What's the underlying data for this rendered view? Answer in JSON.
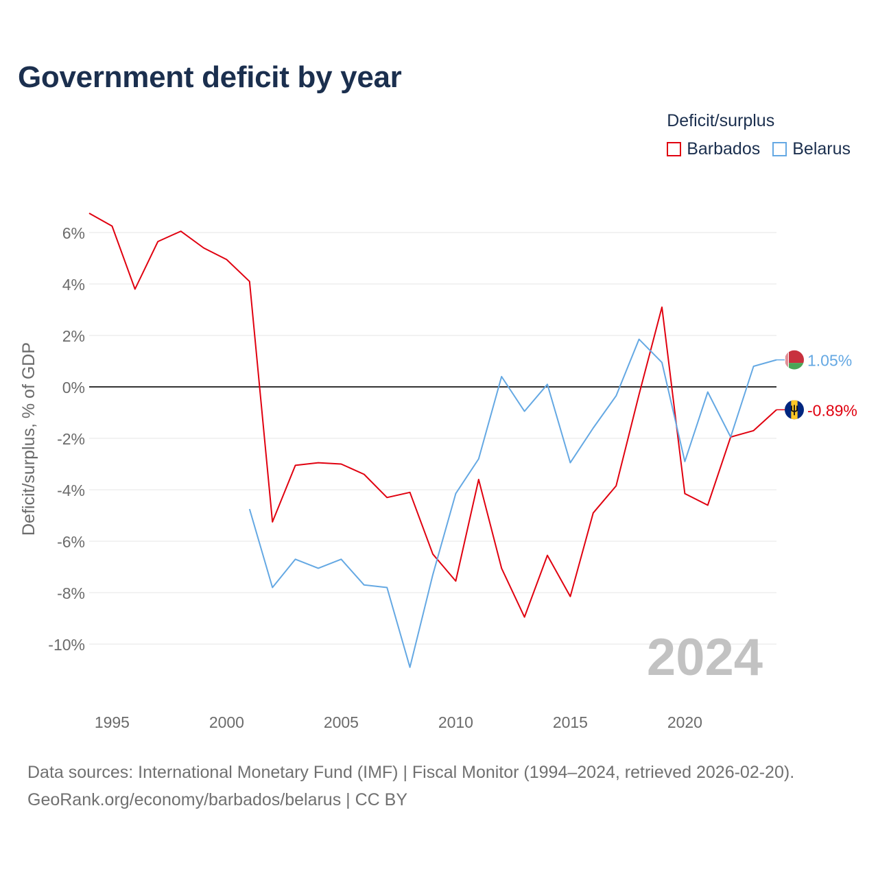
{
  "title": "Government deficit by year",
  "legend": {
    "title": "Deficit/surplus",
    "items": [
      {
        "name": "Barbados",
        "color": "#e0000f"
      },
      {
        "name": "Belarus",
        "color": "#64a8e3"
      }
    ]
  },
  "chart_data": {
    "type": "line",
    "title": "Government deficit by year",
    "xlabel": "",
    "ylabel": "Deficit/surplus, % of GDP",
    "xlim": [
      1994,
      2024
    ],
    "ylim": [
      -12,
      7
    ],
    "x_ticks": [
      1995,
      2000,
      2005,
      2010,
      2015,
      2020
    ],
    "x_tick_labels": [
      "1995",
      "2000",
      "2005",
      "2010",
      "2015",
      "2020"
    ],
    "y_ticks": [
      6,
      4,
      2,
      0,
      -2,
      -4,
      -6,
      -8,
      -10
    ],
    "y_tick_labels": [
      "6%",
      "4%",
      "2%",
      "0%",
      "-2%",
      "-4%",
      "-6%",
      "-8%",
      "-10%"
    ],
    "zero_line": true,
    "watermark_year": "2024",
    "series": [
      {
        "name": "Barbados",
        "color": "#e0000f",
        "end_label": "-0.89%",
        "x": [
          1994,
          1995,
          1996,
          1997,
          1998,
          1999,
          2000,
          2001,
          2002,
          2003,
          2004,
          2005,
          2006,
          2007,
          2008,
          2009,
          2010,
          2011,
          2012,
          2013,
          2014,
          2015,
          2016,
          2017,
          2018,
          2019,
          2020,
          2021,
          2022,
          2023,
          2024
        ],
        "values": [
          6.75,
          6.25,
          3.8,
          5.65,
          6.05,
          5.4,
          4.95,
          4.1,
          -5.25,
          -3.05,
          -2.95,
          -3.0,
          -3.4,
          -4.3,
          -4.1,
          -6.5,
          -7.55,
          -3.6,
          -7.05,
          -8.95,
          -6.55,
          -8.15,
          -4.9,
          -3.85,
          -0.3,
          3.1,
          -4.15,
          -4.6,
          -1.95,
          -1.7,
          -0.89
        ]
      },
      {
        "name": "Belarus",
        "color": "#64a8e3",
        "end_label": "1.05%",
        "x": [
          2001,
          2002,
          2003,
          2004,
          2005,
          2006,
          2007,
          2008,
          2009,
          2010,
          2011,
          2012,
          2013,
          2014,
          2015,
          2016,
          2017,
          2018,
          2019,
          2020,
          2021,
          2022,
          2023,
          2024
        ],
        "values": [
          -4.75,
          -7.8,
          -6.7,
          -7.05,
          -6.7,
          -7.7,
          -7.8,
          -10.9,
          -7.3,
          -4.15,
          -2.8,
          0.4,
          -0.95,
          0.1,
          -2.95,
          -1.6,
          -0.35,
          1.85,
          0.95,
          -2.9,
          -0.2,
          -1.95,
          0.8,
          1.05
        ]
      }
    ]
  },
  "footer": {
    "sources": "Data sources: International Monetary Fund (IMF) | Fiscal Monitor (1994–2024, retrieved 2026-02-20).",
    "attribution": "GeoRank.org/economy/barbados/belarus | CC BY"
  }
}
